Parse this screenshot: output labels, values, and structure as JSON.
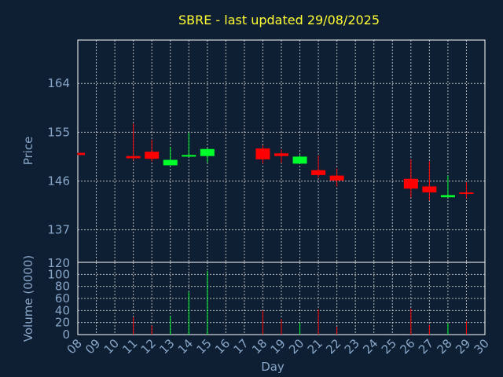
{
  "chart_data": {
    "type": "candlestick",
    "title": "SBRE - last updated 29/08/2025",
    "price_panel": {
      "ylabel": "Price",
      "yticks": [
        137,
        146,
        155,
        164
      ],
      "ylim": [
        131,
        172
      ]
    },
    "volume_panel": {
      "ylabel": "Volume (0000)",
      "bottom_label": "120",
      "yticks": [
        0,
        20,
        40,
        60,
        80,
        100
      ],
      "ylim": [
        0,
        120
      ]
    },
    "xlabel": "Day",
    "x_categories": [
      "08",
      "09",
      "10",
      "11",
      "12",
      "13",
      "14",
      "15",
      "16",
      "17",
      "18",
      "19",
      "20",
      "21",
      "22",
      "23",
      "24",
      "25",
      "26",
      "27",
      "28",
      "29",
      "30"
    ],
    "colors": {
      "up": "#00ff2a",
      "down": "#ff0000",
      "title": "#ffff33",
      "axis_text": "#87a6c8",
      "background": "#0f1f33"
    },
    "candles": [
      {
        "day": "08",
        "open": 151.2,
        "high": 151.2,
        "low": 150.8,
        "close": 150.8
      },
      {
        "day": "11",
        "open": 150.6,
        "high": 156.6,
        "low": 149.8,
        "close": 150.2
      },
      {
        "day": "12",
        "open": 151.4,
        "high": 153.6,
        "low": 149.6,
        "close": 150.1
      },
      {
        "day": "13",
        "open": 148.9,
        "high": 152.3,
        "low": 148.9,
        "close": 149.9
      },
      {
        "day": "14",
        "open": 150.5,
        "high": 154.9,
        "low": 150.4,
        "close": 150.8
      },
      {
        "day": "15",
        "open": 150.6,
        "high": 152.0,
        "low": 149.4,
        "close": 151.9
      },
      {
        "day": "18",
        "open": 152.0,
        "high": 152.6,
        "low": 149.2,
        "close": 150.0
      },
      {
        "day": "19",
        "open": 151.1,
        "high": 151.8,
        "low": 149.3,
        "close": 150.6
      },
      {
        "day": "20",
        "open": 149.2,
        "high": 150.8,
        "low": 149.2,
        "close": 150.5
      },
      {
        "day": "21",
        "open": 148.0,
        "high": 150.7,
        "low": 146.6,
        "close": 147.1
      },
      {
        "day": "22",
        "open": 147.0,
        "high": 148.3,
        "low": 145.0,
        "close": 146.1
      },
      {
        "day": "26",
        "open": 146.4,
        "high": 150.0,
        "low": 143.0,
        "close": 144.6
      },
      {
        "day": "27",
        "open": 145.0,
        "high": 149.6,
        "low": 142.4,
        "close": 143.9
      },
      {
        "day": "28",
        "open": 143.0,
        "high": 147.0,
        "low": 143.0,
        "close": 143.4
      },
      {
        "day": "29",
        "open": 143.9,
        "high": 145.8,
        "low": 142.8,
        "close": 143.7
      }
    ],
    "volume": [
      {
        "day": "08",
        "value": 0,
        "color": "down"
      },
      {
        "day": "11",
        "value": 29,
        "color": "down"
      },
      {
        "day": "12",
        "value": 15,
        "color": "down"
      },
      {
        "day": "13",
        "value": 31,
        "color": "up"
      },
      {
        "day": "14",
        "value": 71,
        "color": "up"
      },
      {
        "day": "15",
        "value": 106,
        "color": "up"
      },
      {
        "day": "18",
        "value": 40,
        "color": "down"
      },
      {
        "day": "19",
        "value": 26,
        "color": "down"
      },
      {
        "day": "20",
        "value": 20,
        "color": "up"
      },
      {
        "day": "21",
        "value": 42,
        "color": "down"
      },
      {
        "day": "22",
        "value": 13,
        "color": "down"
      },
      {
        "day": "26",
        "value": 43,
        "color": "down"
      },
      {
        "day": "27",
        "value": 16,
        "color": "down"
      },
      {
        "day": "28",
        "value": 19,
        "color": "up"
      },
      {
        "day": "29",
        "value": 22,
        "color": "down"
      }
    ]
  }
}
